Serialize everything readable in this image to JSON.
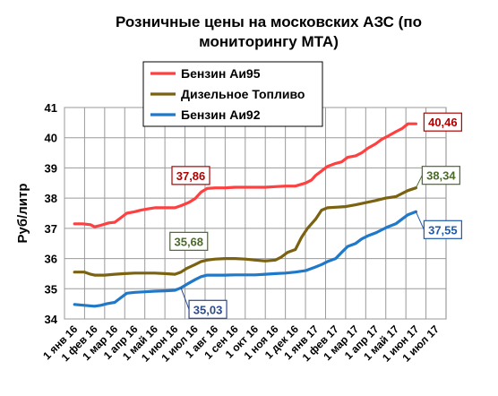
{
  "chart_data": {
    "type": "line",
    "title_lines": [
      "Розничные цены на московских АЗС (по",
      "мониторингу МТА)"
    ],
    "ylabel": "Руб/литр",
    "xlabel": "",
    "ylim": [
      34,
      41
    ],
    "yticks": [
      34,
      35,
      36,
      37,
      38,
      39,
      40,
      41
    ],
    "grid": true,
    "legend_position": "top-center",
    "x_tick_labels": [
      "1 янв 16",
      "1 фев 16",
      "1 мар 16",
      "1 апр 16",
      "1 май 16",
      "1 июн 16",
      "1 июл 16",
      "1 авг 16",
      "1 сен 16",
      "1 окт 16",
      "1 ноя 16",
      "1 дек 16",
      "1 янв 17",
      "1 фев 17",
      "1 мар 17",
      "1 апр 17",
      "1 май 17",
      "1 июн 17",
      "1 июл 17"
    ],
    "series": [
      {
        "name": "Бензин Аи95",
        "color": "#ff4040",
        "values": [
          [
            0,
            37.15
          ],
          [
            0.4,
            37.15
          ],
          [
            0.8,
            37.12
          ],
          [
            1,
            37.05
          ],
          [
            1.3,
            37.1
          ],
          [
            1.7,
            37.18
          ],
          [
            2,
            37.2
          ],
          [
            2.3,
            37.35
          ],
          [
            2.6,
            37.5
          ],
          [
            3,
            37.55
          ],
          [
            3.3,
            37.6
          ],
          [
            3.7,
            37.65
          ],
          [
            4,
            37.68
          ],
          [
            4.5,
            37.68
          ],
          [
            5,
            37.68
          ],
          [
            5.3,
            37.75
          ],
          [
            5.7,
            37.86
          ],
          [
            6,
            37.98
          ],
          [
            6.3,
            38.2
          ],
          [
            6.6,
            38.32
          ],
          [
            7,
            38.34
          ],
          [
            7.5,
            38.34
          ],
          [
            8,
            38.36
          ],
          [
            8.5,
            38.36
          ],
          [
            9,
            38.36
          ],
          [
            9.5,
            38.36
          ],
          [
            10,
            38.38
          ],
          [
            10.5,
            38.4
          ],
          [
            11,
            38.4
          ],
          [
            11.5,
            38.5
          ],
          [
            11.8,
            38.6
          ],
          [
            12,
            38.75
          ],
          [
            12.3,
            38.9
          ],
          [
            12.6,
            39.05
          ],
          [
            13,
            39.15
          ],
          [
            13.3,
            39.2
          ],
          [
            13.6,
            39.35
          ],
          [
            14,
            39.4
          ],
          [
            14.3,
            39.5
          ],
          [
            14.6,
            39.65
          ],
          [
            15,
            39.8
          ],
          [
            15.3,
            39.95
          ],
          [
            15.6,
            40.05
          ],
          [
            16,
            40.2
          ],
          [
            16.3,
            40.3
          ],
          [
            16.6,
            40.46
          ],
          [
            17,
            40.46
          ]
        ]
      },
      {
        "name": "Дизельное Топливо",
        "color": "#7a6210",
        "values": [
          [
            0,
            35.55
          ],
          [
            0.5,
            35.55
          ],
          [
            0.8,
            35.48
          ],
          [
            1,
            35.45
          ],
          [
            1.5,
            35.45
          ],
          [
            2,
            35.48
          ],
          [
            2.5,
            35.5
          ],
          [
            3,
            35.52
          ],
          [
            3.5,
            35.52
          ],
          [
            4,
            35.52
          ],
          [
            4.5,
            35.5
          ],
          [
            5,
            35.48
          ],
          [
            5.3,
            35.55
          ],
          [
            5.6,
            35.68
          ],
          [
            6,
            35.8
          ],
          [
            6.3,
            35.9
          ],
          [
            6.6,
            35.95
          ],
          [
            7,
            35.98
          ],
          [
            7.5,
            36.0
          ],
          [
            8,
            36.0
          ],
          [
            8.5,
            35.98
          ],
          [
            9,
            35.95
          ],
          [
            9.5,
            35.92
          ],
          [
            10,
            35.95
          ],
          [
            10.3,
            36.05
          ],
          [
            10.6,
            36.2
          ],
          [
            11,
            36.3
          ],
          [
            11.3,
            36.7
          ],
          [
            11.6,
            37.0
          ],
          [
            12,
            37.3
          ],
          [
            12.3,
            37.6
          ],
          [
            12.6,
            37.68
          ],
          [
            13,
            37.7
          ],
          [
            13.5,
            37.72
          ],
          [
            14,
            37.78
          ],
          [
            14.5,
            37.85
          ],
          [
            15,
            37.92
          ],
          [
            15.5,
            38.0
          ],
          [
            16,
            38.05
          ],
          [
            16.3,
            38.15
          ],
          [
            16.6,
            38.25
          ],
          [
            17,
            38.34
          ]
        ]
      },
      {
        "name": "Бензин Аи92",
        "color": "#1f78c8",
        "values": [
          [
            0,
            34.48
          ],
          [
            0.5,
            34.45
          ],
          [
            1,
            34.42
          ],
          [
            1.3,
            34.45
          ],
          [
            1.6,
            34.5
          ],
          [
            2,
            34.55
          ],
          [
            2.3,
            34.7
          ],
          [
            2.6,
            34.85
          ],
          [
            3,
            34.88
          ],
          [
            3.5,
            34.9
          ],
          [
            4,
            34.92
          ],
          [
            4.5,
            34.93
          ],
          [
            5,
            34.95
          ],
          [
            5.3,
            35.03
          ],
          [
            5.6,
            35.15
          ],
          [
            6,
            35.3
          ],
          [
            6.3,
            35.4
          ],
          [
            6.6,
            35.45
          ],
          [
            7,
            35.45
          ],
          [
            7.5,
            35.45
          ],
          [
            8,
            35.46
          ],
          [
            8.5,
            35.46
          ],
          [
            9,
            35.46
          ],
          [
            9.5,
            35.48
          ],
          [
            10,
            35.5
          ],
          [
            10.5,
            35.52
          ],
          [
            11,
            35.55
          ],
          [
            11.5,
            35.6
          ],
          [
            12,
            35.72
          ],
          [
            12.3,
            35.8
          ],
          [
            12.6,
            35.9
          ],
          [
            13,
            36.0
          ],
          [
            13.3,
            36.2
          ],
          [
            13.6,
            36.4
          ],
          [
            14,
            36.5
          ],
          [
            14.3,
            36.65
          ],
          [
            14.6,
            36.75
          ],
          [
            15,
            36.85
          ],
          [
            15.3,
            36.95
          ],
          [
            15.6,
            37.05
          ],
          [
            16,
            37.15
          ],
          [
            16.3,
            37.3
          ],
          [
            16.6,
            37.45
          ],
          [
            17,
            37.55
          ]
        ]
      }
    ],
    "annotations": [
      {
        "text": "37,86",
        "color": "#b00000",
        "bg": "#ffffff",
        "x": 5.7,
        "y": 37.86
      },
      {
        "text": "35,68",
        "color": "#4a6a2a",
        "bg": "#ffffff",
        "x": 5.6,
        "y": 35.68
      },
      {
        "text": "35,03",
        "color": "#2a4a8a",
        "bg": "#ffffff",
        "x": 5.3,
        "y": 35.03
      },
      {
        "text": "40,46",
        "color": "#b00000",
        "bg": "#ffffff",
        "x": 17,
        "y": 40.46
      },
      {
        "text": "38,34",
        "color": "#4a6a2a",
        "bg": "#ffffff",
        "x": 17,
        "y": 38.34
      },
      {
        "text": "37,55",
        "color": "#1f5aa8",
        "bg": "#ffffff",
        "x": 17,
        "y": 37.55
      }
    ]
  }
}
